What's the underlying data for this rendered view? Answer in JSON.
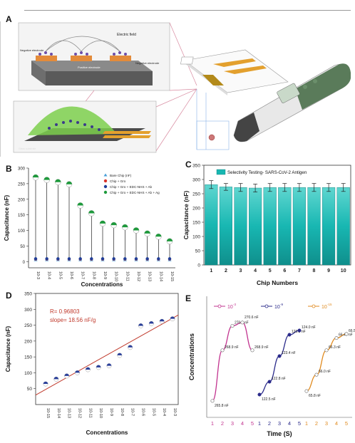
{
  "panels": {
    "A": "A",
    "B": "B",
    "C": "C",
    "D": "D",
    "E": "E"
  },
  "panelA": {
    "label_electric_field": "Electric field",
    "label_negative_electrode_left": "Negative electrode",
    "label_negative_electrode_right": "Negative electrode",
    "label_positive_electrode": "Positive electrode",
    "label_substrate": "Glass substrate"
  },
  "chart_data": [
    {
      "type": "scatter",
      "id": "B",
      "title": "",
      "xlabel": "Concentrations",
      "ylabel": "Capacitance (nF)",
      "ylim": [
        -20,
        300
      ],
      "yticks": [
        0,
        50,
        100,
        150,
        200,
        250,
        300
      ],
      "categories": [
        "10-3",
        "10-4",
        "10-5",
        "10-6",
        "10-7",
        "10-8",
        "10-9",
        "10-10",
        "10-11",
        "10-12",
        "10-13",
        "10-14",
        "10-15"
      ],
      "series": [
        {
          "name": "Bare Chip (nF)",
          "color": "#4a9fd8",
          "marker": "triangle",
          "values": [
            6,
            6,
            6,
            6,
            6,
            6,
            6,
            6,
            6,
            6,
            6,
            6,
            6
          ]
        },
        {
          "name": "Chip + Gro",
          "color": "#d9332a",
          "marker": "circle",
          "values": [
            8,
            8,
            8,
            8,
            8,
            8,
            8,
            8,
            8,
            8,
            8,
            8,
            8
          ]
        },
        {
          "name": "Chip + Gro + EDC-NHS + Ab",
          "color": "#1f3f9a",
          "marker": "circle",
          "values": [
            9,
            9,
            9,
            9,
            9,
            9,
            9,
            9,
            9,
            9,
            9,
            9,
            9
          ]
        },
        {
          "name": "Chip + Gro + EDC-NHS + Ab + Ag",
          "color": "#1e9a3c",
          "marker": "half-circle",
          "values": [
            270,
            262,
            255,
            248,
            180,
            155,
            122,
            117,
            110,
            100,
            90,
            80,
            65
          ]
        }
      ],
      "legend": "top-right",
      "grid": false
    },
    {
      "type": "bar",
      "id": "C",
      "title": "",
      "xlabel": "Chip Numbers",
      "ylabel": "Capacitance (nF)",
      "ylim": [
        0,
        350
      ],
      "yticks": [
        0,
        50,
        100,
        150,
        200,
        250,
        300,
        350
      ],
      "categories": [
        "1",
        "2",
        "3",
        "4",
        "5",
        "6",
        "7",
        "8",
        "9",
        "10"
      ],
      "series": [
        {
          "name": "Selectivity Testing- SARS-CoV-2 Antigen",
          "color": "#18b7b2",
          "values": [
            282,
            274,
            272,
            270,
            272,
            272,
            272,
            272,
            272,
            272
          ],
          "errors": [
            14,
            12,
            14,
            14,
            14,
            14,
            14,
            14,
            14,
            14
          ]
        }
      ],
      "legend": "top",
      "grid": false
    },
    {
      "type": "scatter",
      "id": "D",
      "title": "",
      "xlabel": "Concentrations",
      "ylabel": "Capacitance (nF)",
      "ylim": [
        0,
        350
      ],
      "yticks": [
        50,
        100,
        150,
        200,
        250,
        300,
        350
      ],
      "categories": [
        "10-15",
        "10-14",
        "10-13",
        "10-12",
        "10-11",
        "10-10",
        "10-9",
        "10-8",
        "10-7",
        "10-6",
        "10-5",
        "10-4",
        "10-3"
      ],
      "values": [
        65,
        80,
        90,
        100,
        110,
        117,
        122,
        155,
        180,
        248,
        255,
        262,
        270
      ],
      "fit_line": [
        30,
        282
      ],
      "annotations": [
        "R= 0.96803",
        "slope= 18.56 nF/g"
      ],
      "grid": false
    },
    {
      "type": "line",
      "id": "E",
      "title": "",
      "xlabel": "Time (S)",
      "ylabel": "Concentrations",
      "series": [
        {
          "name": "10",
          "sup": "-3",
          "color": "#c2338f",
          "x": [
            1,
            2,
            3,
            4,
            5
          ],
          "values": [
            265.8,
            268.9,
            270.4,
            270.6,
            268.9
          ],
          "labels": [
            "265.8 nF",
            "268.9 nF",
            "270.4 nF",
            "270.6 nF",
            "268.9 nF"
          ]
        },
        {
          "name": "10",
          "sup": "-9",
          "color": "#2a2a8a",
          "x": [
            1,
            2,
            3,
            4,
            5
          ],
          "values": [
            122.5,
            122.8,
            123.4,
            123.9,
            124.0
          ],
          "labels": [
            "122.5 nF",
            "122.8 nF",
            "123.4 nF",
            "123.9 nF",
            "124.0 nF"
          ]
        },
        {
          "name": "10",
          "sup": "-15",
          "color": "#e08a1e",
          "x": [
            1,
            2,
            3,
            4,
            5
          ],
          "values": [
            65.8,
            66.0,
            66.3,
            66.45,
            66.5
          ],
          "labels": [
            "65.8 nF",
            "66.0 nF",
            "66.3 nF",
            "66.45 nF",
            "66.5 nF"
          ]
        }
      ],
      "legend": "top",
      "grid": false
    }
  ]
}
